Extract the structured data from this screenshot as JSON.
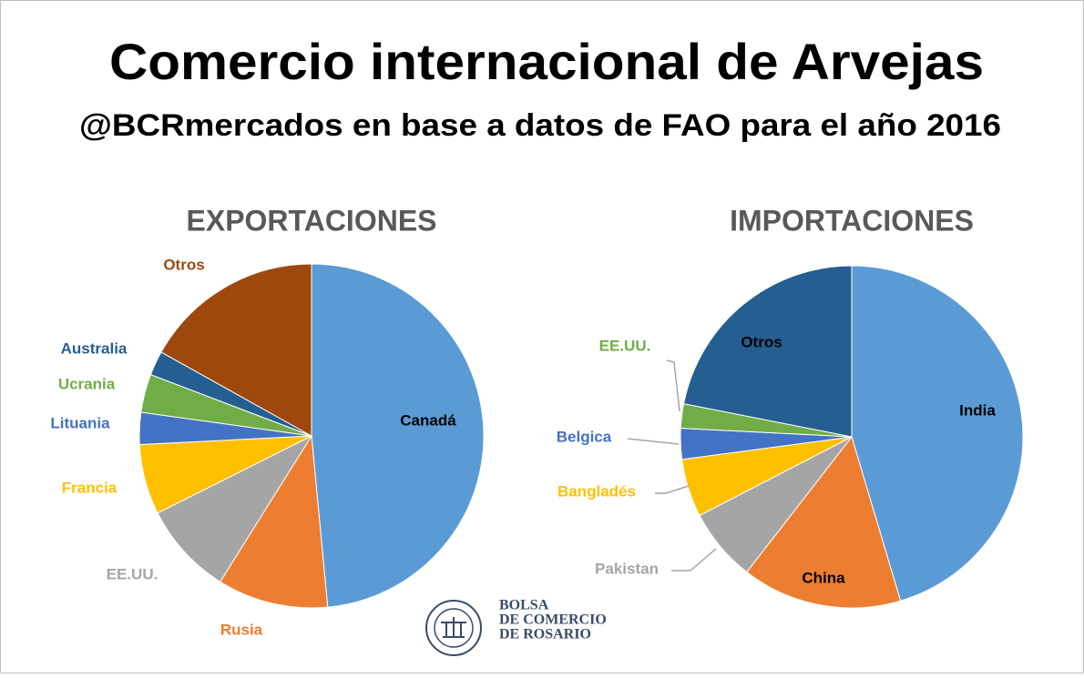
{
  "title": "Comercio internacional de Arvejas",
  "subtitle": "@BCRmercados en base a datos de FAO para el año 2016",
  "logo": [
    "BOLSA",
    "DE COMERCIO",
    "DE ROSARIO"
  ],
  "chart_data": [
    {
      "type": "pie",
      "title": "EXPORTACIONES",
      "categories": [
        "Canadá",
        "Rusia",
        "EE.UU.",
        "Francia",
        "Lituania",
        "Ucrania",
        "Australia",
        "Otros"
      ],
      "values": [
        48.5,
        10.4,
        8.7,
        6.6,
        3.0,
        3.6,
        2.3,
        16.9
      ],
      "colors": [
        "#5b9bd5",
        "#ed7d31",
        "#a5a5a5",
        "#ffc000",
        "#4472c4",
        "#70ad47",
        "#255e91",
        "#9e480e"
      ]
    },
    {
      "type": "pie",
      "title": "IMPORTACIONES",
      "categories": [
        "India",
        "China",
        "Pakistan",
        "Bangladés",
        "Belgica",
        "EE.UU.",
        "Otros"
      ],
      "values": [
        45.4,
        15.1,
        6.9,
        5.5,
        2.9,
        2.3,
        21.9
      ],
      "colors": [
        "#5b9bd5",
        "#ed7d31",
        "#a5a5a5",
        "#ffc000",
        "#4472c4",
        "#70ad47",
        "#255e91"
      ]
    }
  ]
}
